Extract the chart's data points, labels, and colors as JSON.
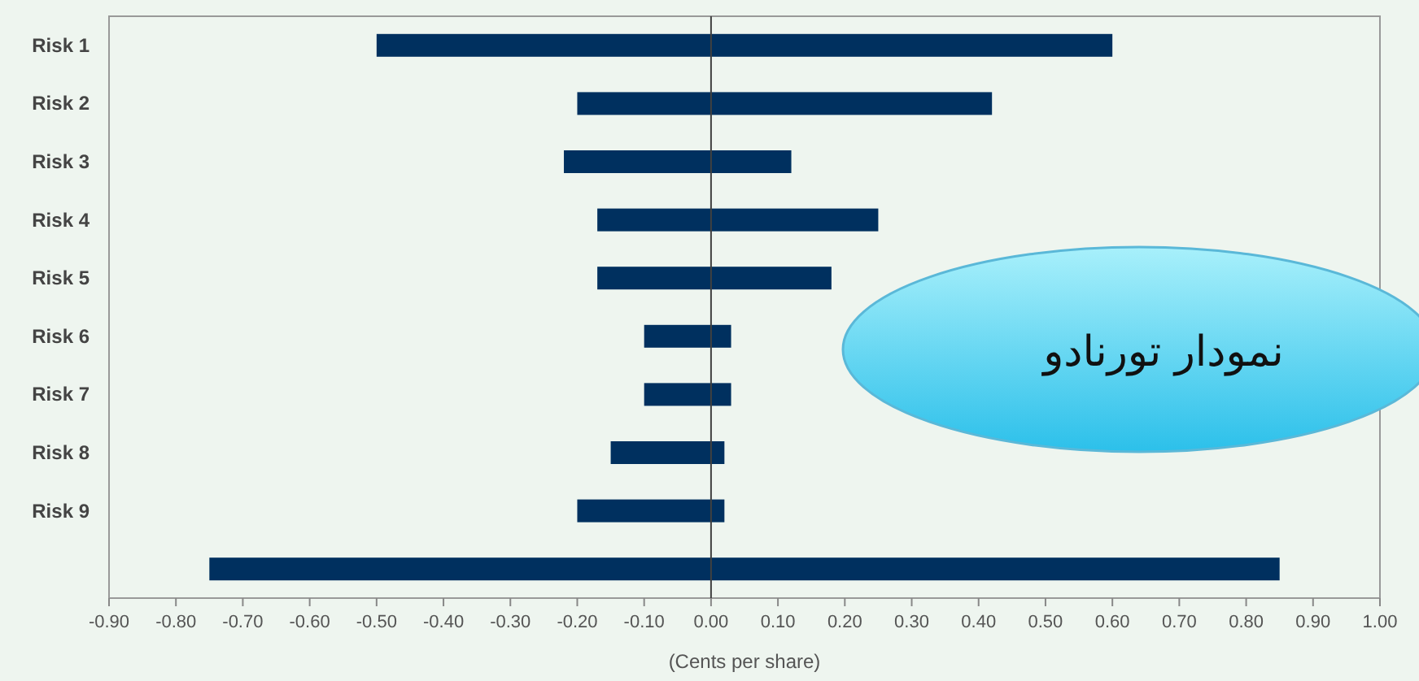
{
  "chart_data": {
    "type": "bar",
    "orientation": "horizontal",
    "xlabel": "(Cents per share)",
    "categories": [
      "Risk 1",
      "Risk 2",
      "Risk 3",
      "Risk 4",
      "Risk 5",
      "Risk 6",
      "Risk 7",
      "Risk 8",
      "Risk 9",
      null
    ],
    "base": [
      -0.5,
      -0.2,
      -0.22,
      -0.17,
      -0.17,
      -0.1,
      -0.1,
      -0.15,
      -0.2,
      -0.75
    ],
    "values": [
      1.1,
      0.62,
      0.34,
      0.42,
      0.35,
      0.13,
      0.13,
      0.17,
      0.22,
      1.6
    ],
    "color": "#00305f",
    "xlim": [
      -0.9,
      1.0
    ],
    "xticks": [
      {
        "value": -0.9,
        "label": "-0.90"
      },
      {
        "value": -0.8,
        "label": "-0.80"
      },
      {
        "value": -0.7,
        "label": "-0.70"
      },
      {
        "value": -0.6,
        "label": "-0.60"
      },
      {
        "value": -0.5,
        "label": "-0.50"
      },
      {
        "value": -0.4,
        "label": "-0.40"
      },
      {
        "value": -0.3,
        "label": "-0.30"
      },
      {
        "value": -0.2,
        "label": "-0.20"
      },
      {
        "value": -0.1,
        "label": "-0.10"
      },
      {
        "value": 0,
        "label": "0.00"
      },
      {
        "value": 0.1,
        "label": "0.10"
      },
      {
        "value": 0.2,
        "label": "0.20"
      },
      {
        "value": 0.3,
        "label": "0.30"
      },
      {
        "value": 0.4,
        "label": "0.40"
      },
      {
        "value": 0.5,
        "label": "0.50"
      },
      {
        "value": 0.6,
        "label": "0.60"
      },
      {
        "value": 0.7,
        "label": "0.70"
      },
      {
        "value": 0.8,
        "label": "0.80"
      },
      {
        "value": 0.9,
        "label": "0.90"
      },
      {
        "value": 1.0,
        "label": "1.00"
      }
    ],
    "ref_lines": [
      {
        "axis": "x",
        "value": 0,
        "color": "#404040"
      }
    ],
    "annotations": [
      "نمودار تورنادو"
    ]
  }
}
